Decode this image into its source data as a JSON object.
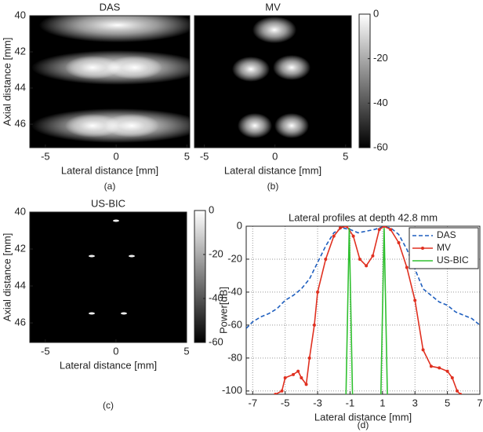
{
  "chart_data": [
    {
      "type": "image",
      "title": "DAS",
      "xlabel": "Lateral distance [mm]",
      "ylabel": "Axial distance [mm]",
      "caption": "(a)",
      "xlim": [
        -6.1,
        5.2
      ],
      "xticks": [
        -5,
        0,
        5
      ],
      "ylim": [
        40,
        47.3
      ],
      "yticks": [
        40,
        42,
        44,
        46
      ]
    },
    {
      "type": "image",
      "title": "MV",
      "xlabel": "Lateral distance [mm]",
      "caption": "(b)",
      "xlim": [
        -5.7,
        5.4
      ],
      "xticks": [
        -5,
        0,
        5
      ],
      "ylim": [
        40,
        47.3
      ],
      "clim": [
        -60,
        0
      ],
      "cticks": [
        0,
        -20,
        -40,
        -60
      ]
    },
    {
      "type": "image",
      "title": "US-BIC",
      "xlabel": "Lateral distance [mm]",
      "ylabel": "Axial distance [mm]",
      "caption": "(c)",
      "xlim": [
        -6.1,
        5
      ],
      "xticks": [
        -5,
        0,
        5
      ],
      "ylim": [
        40,
        47.06
      ],
      "yticks": [
        40,
        42,
        44,
        46
      ],
      "clim": [
        -60,
        0
      ],
      "cticks": [
        0,
        -20,
        -40,
        -60
      ]
    },
    {
      "type": "line",
      "title": "Lateral profiles at depth 42.8 mm",
      "xlabel": "Lateral distance [mm]",
      "ylabel": "Power[dB]",
      "caption": "(d)",
      "xlim": [
        -7.4,
        7
      ],
      "xticks": [
        -7,
        -5,
        -3,
        -1,
        1,
        3,
        5,
        7
      ],
      "ylim": [
        -102,
        0
      ],
      "yticks": [
        0,
        -20,
        -40,
        -60,
        -80,
        -100
      ],
      "grid": true,
      "legend": "upper right",
      "series": [
        {
          "name": "DAS",
          "color": "#1f5fbf",
          "linestyle": "dashed",
          "x": [
            -7.4,
            -7,
            -6.5,
            -6,
            -5.5,
            -5,
            -4.5,
            -4,
            -3.5,
            -3,
            -2.5,
            -2,
            -1.5,
            -1,
            -0.5,
            0,
            0.5,
            1,
            1.5,
            2,
            2.5,
            3,
            3.5,
            4,
            4.5,
            5,
            5.5,
            6,
            6.5,
            7
          ],
          "values": [
            -62,
            -58,
            -55,
            -53,
            -50,
            -45,
            -42,
            -38,
            -32,
            -22,
            -12,
            -4,
            -1,
            -2,
            -4,
            -3,
            -2,
            -0.5,
            -1,
            -5,
            -14,
            -26,
            -38,
            -42,
            -46,
            -48,
            -52,
            -54,
            -56,
            -60
          ]
        },
        {
          "name": "MV",
          "color": "#e03020",
          "linestyle": "solid",
          "marker": "o",
          "x": [
            -5.6,
            -5.2,
            -5,
            -4.5,
            -4.2,
            -4,
            -3.7,
            -3.5,
            -3.2,
            -3,
            -2.5,
            -2,
            -1.6,
            -1.2,
            -0.8,
            -0.4,
            0,
            0.4,
            0.8,
            1.1,
            1.5,
            2,
            2.5,
            3,
            3.5,
            4,
            4.5,
            5,
            5.3,
            5.6,
            5.8
          ],
          "values": [
            -102,
            -100,
            -92,
            -90,
            -88,
            -92,
            -96,
            -80,
            -60,
            -40,
            -20,
            -6,
            -1,
            0,
            -6,
            -20,
            -24,
            -18,
            -2,
            0,
            -2,
            -10,
            -25,
            -45,
            -75,
            -85,
            -86,
            -88,
            -92,
            -100,
            -102
          ]
        },
        {
          "name": "US-BIC",
          "color": "#30c030",
          "linestyle": "solid",
          "x": [
            -1.25,
            -1.05,
            -0.85,
            null,
            0.9,
            1.1,
            1.3
          ],
          "values": [
            -102,
            -1,
            -102,
            null,
            -102,
            -1,
            -102
          ]
        }
      ]
    }
  ]
}
